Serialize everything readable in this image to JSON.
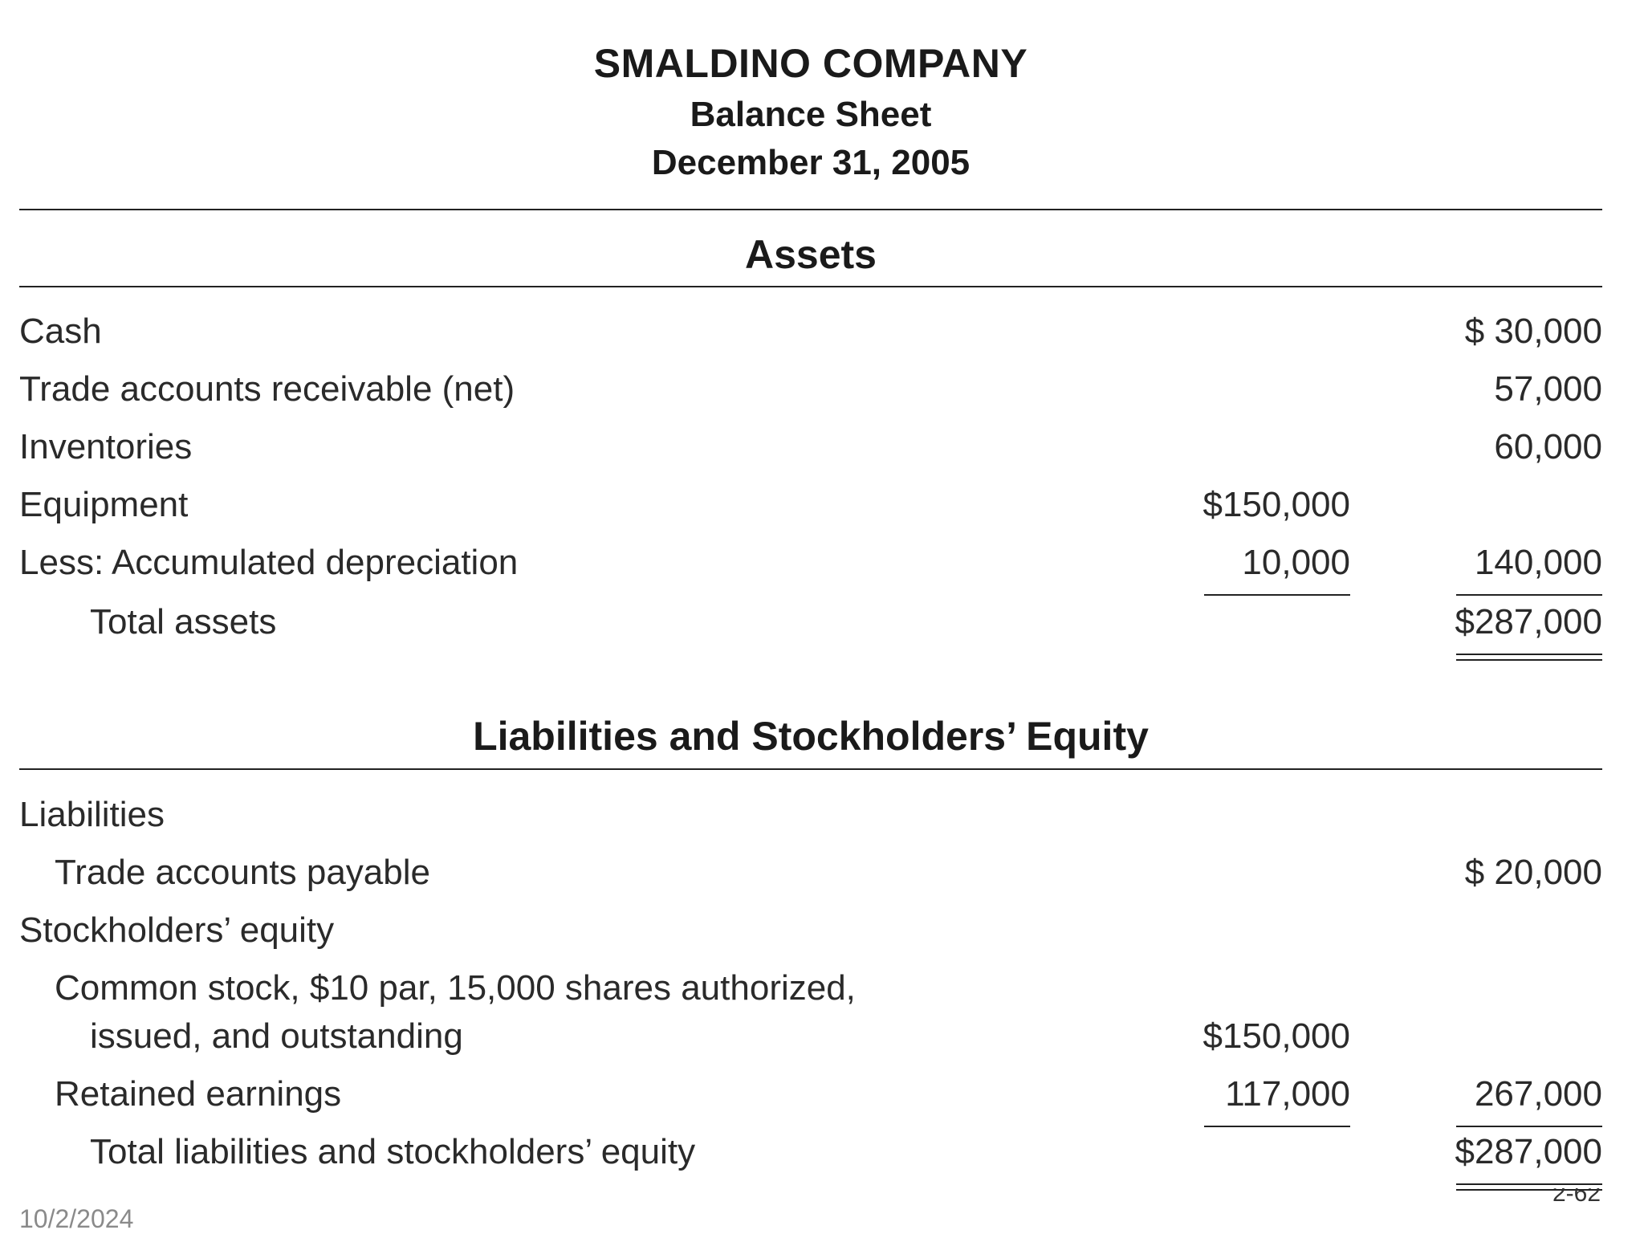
{
  "header": {
    "company": "SMALDINO COMPANY",
    "statement": "Balance Sheet",
    "date": "December 31, 2005"
  },
  "assets": {
    "heading": "Assets",
    "rows": [
      {
        "label": "Cash",
        "col2": "$  30,000"
      },
      {
        "label": "Trade accounts receivable (net)",
        "col2": "57,000"
      },
      {
        "label": "Inventories",
        "col2": "60,000"
      },
      {
        "label": "Equipment",
        "col1": "$150,000"
      },
      {
        "label": "Less: Accumulated depreciation",
        "col1": "10,000",
        "col2": "140,000"
      },
      {
        "label": "Total assets",
        "col2": "$287,000"
      }
    ]
  },
  "liabilities": {
    "heading": "Liabilities and Stockholders’ Equity",
    "rows": [
      {
        "label": "Liabilities"
      },
      {
        "label": "Trade accounts payable",
        "col2": "$  20,000"
      },
      {
        "label": "Stockholders’ equity"
      },
      {
        "label": "Common stock, $10 par, 15,000 shares authorized,"
      },
      {
        "label": "issued, and outstanding",
        "col1": "$150,000"
      },
      {
        "label": "Retained earnings",
        "col1": "117,000",
        "col2": "267,000"
      },
      {
        "label": "Total liabilities and stockholders’ equity",
        "col2": "$287,000"
      }
    ]
  },
  "footer": {
    "date": "10/2/2024",
    "page": "2-62"
  }
}
